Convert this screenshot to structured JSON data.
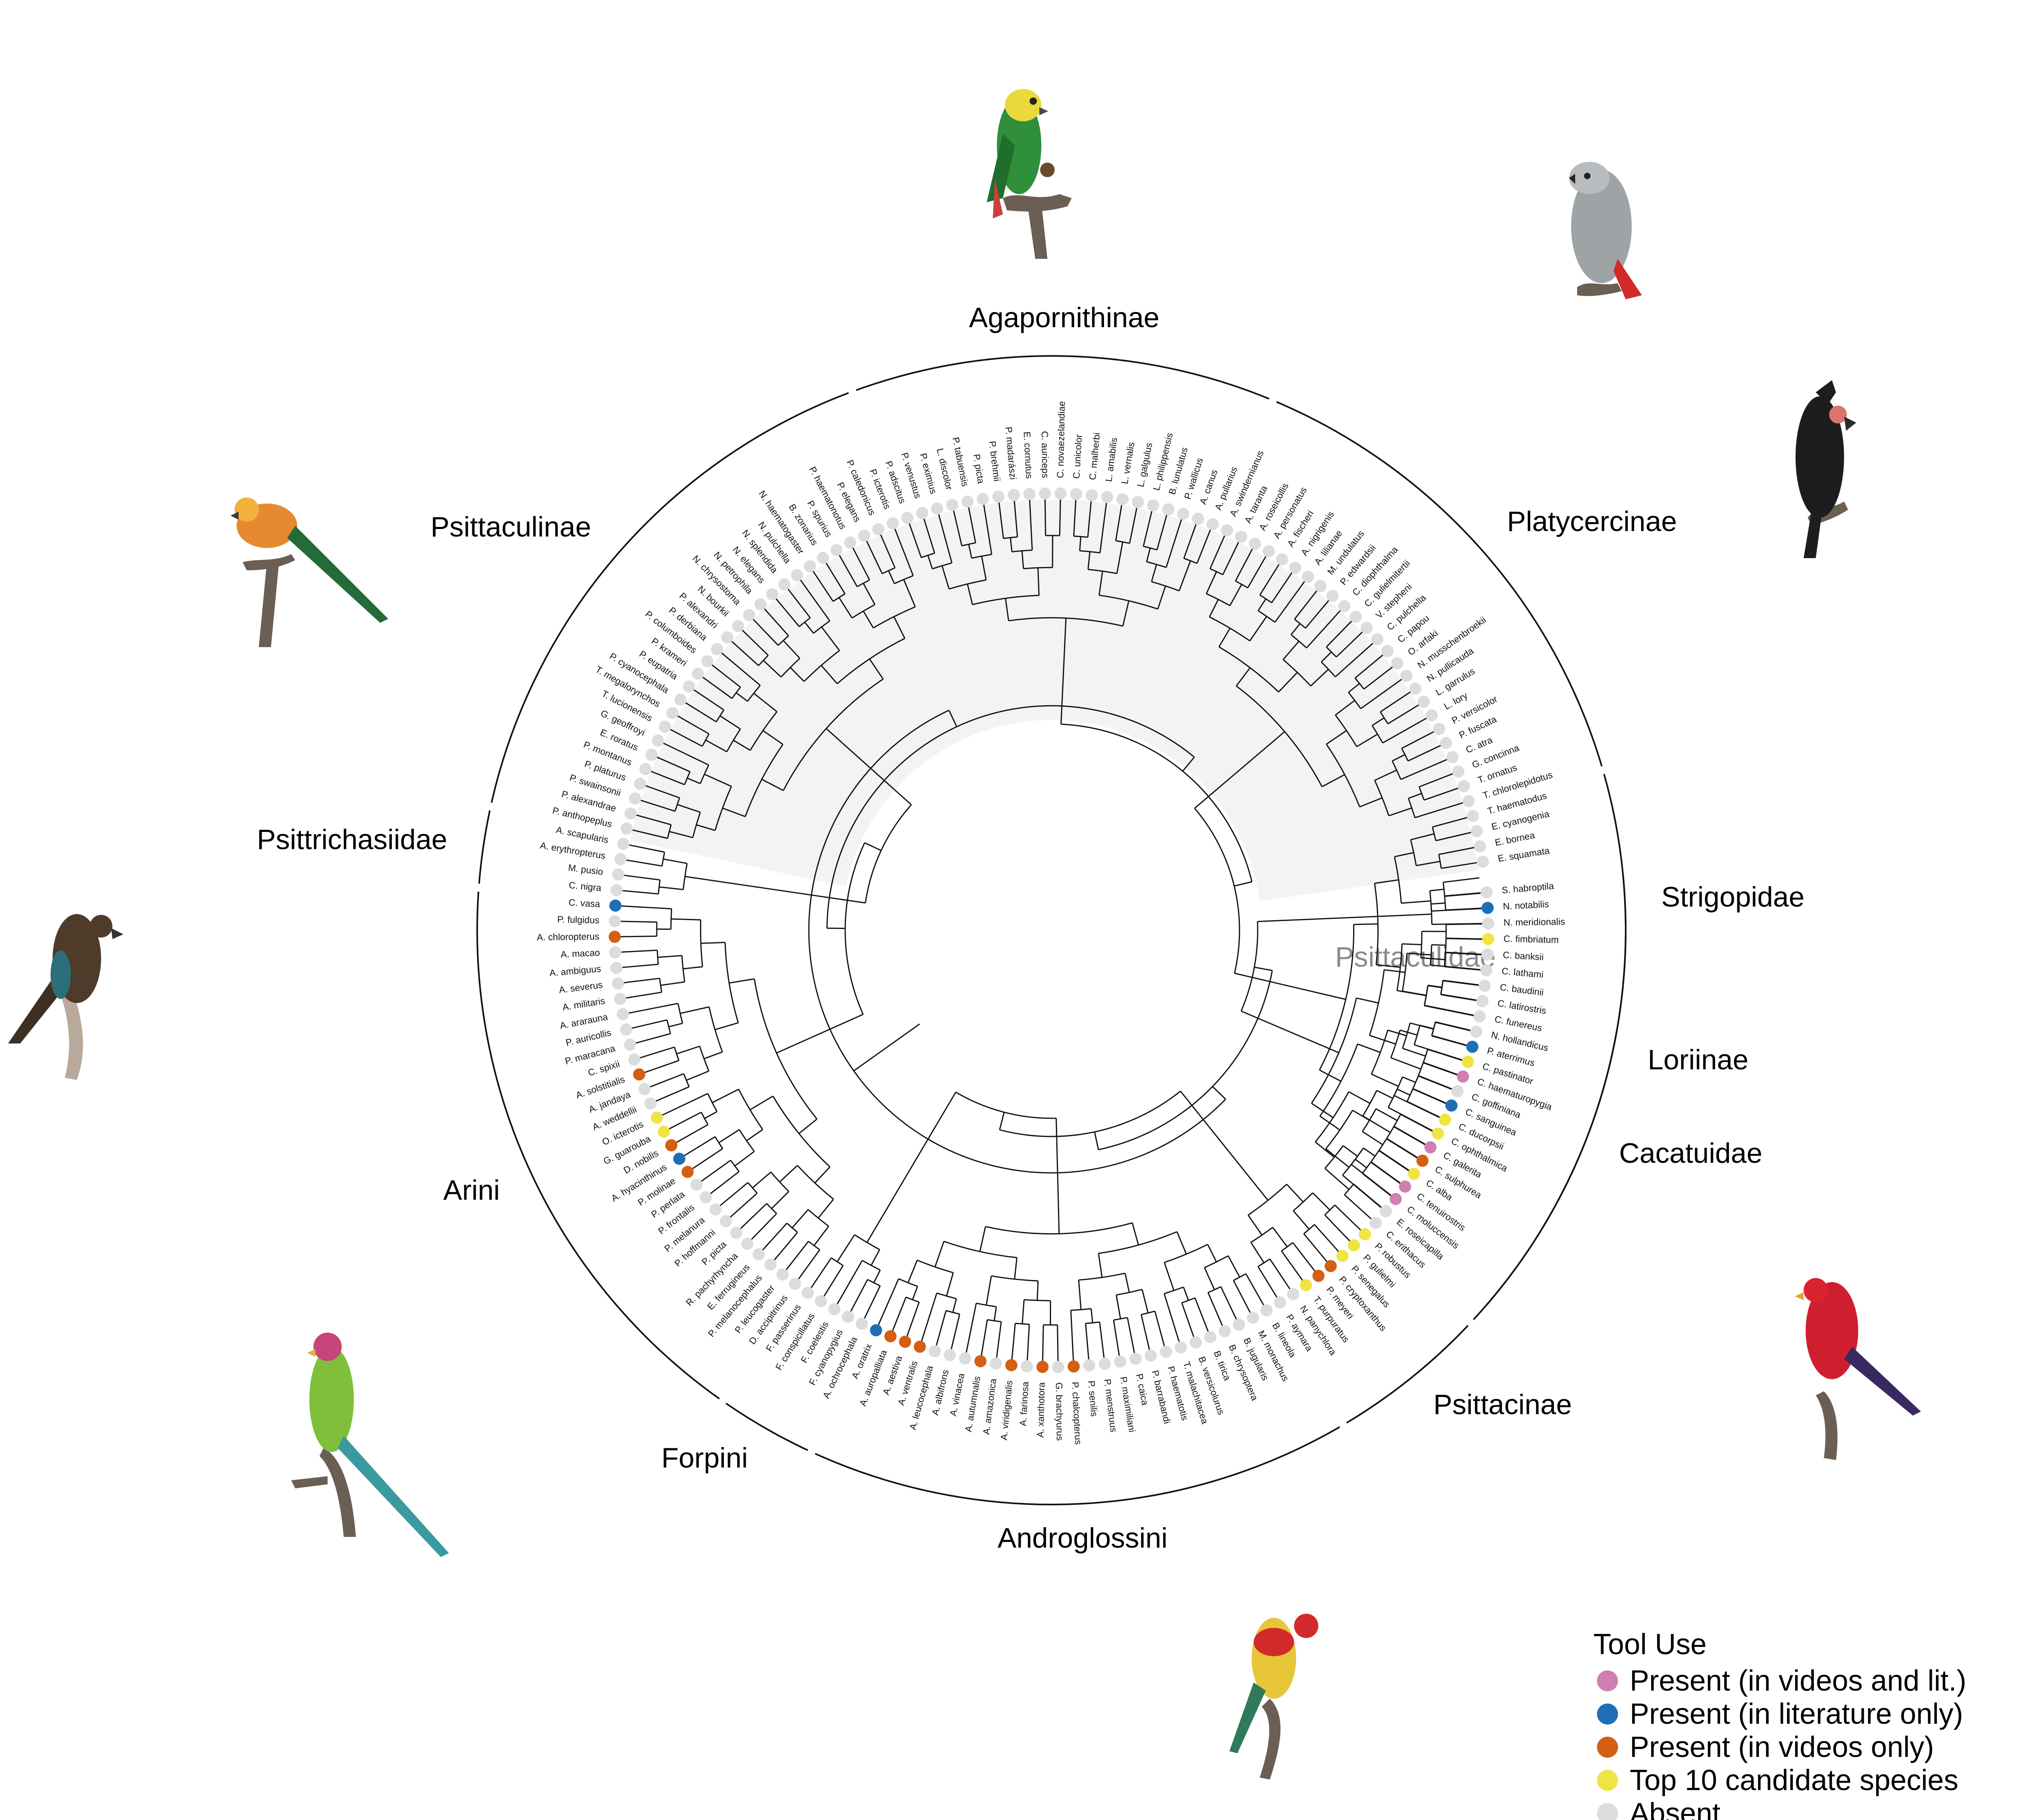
{
  "colors": {
    "present_videos_and_lit": "#d07fb3",
    "present_literature_only": "#1f6fb5",
    "present_videos_only": "#d45f12",
    "top10_candidate": "#f0e442",
    "absent": "#dcdcdc",
    "psittaculidae_shade": "#f3f3f3"
  },
  "legend": {
    "title": "Tool Use",
    "items": [
      {
        "label": "Present (in videos and lit.)",
        "status": "video_lit"
      },
      {
        "label": "Present (in literature only)",
        "status": "lit"
      },
      {
        "label": "Present (in videos only)",
        "status": "video"
      },
      {
        "label": "Top 10 candidate species",
        "status": "top10"
      },
      {
        "label": "Absent",
        "status": "absent"
      }
    ]
  },
  "shaded_clade_label": "Psittaculidae",
  "clades": [
    {
      "name": "Strigopidae",
      "from": 0,
      "to": 2
    },
    {
      "name": "Cacatuidae",
      "from": 3,
      "to": 23
    },
    {
      "name": "Psittacinae",
      "from": 24,
      "to": 31
    },
    {
      "name": "Androglossini",
      "from": 32,
      "to": 58
    },
    {
      "name": "Forpini",
      "from": 59,
      "to": 63
    },
    {
      "name": "Arini",
      "from": 64,
      "to": 92
    },
    {
      "name": "Psittrichasiidae",
      "from": 93,
      "to": 96
    },
    {
      "name": "Psittaculinae",
      "from": 97,
      "to": 124
    },
    {
      "name": "Agapornithinae",
      "from": 125,
      "to": 145
    },
    {
      "name": "Platycercinae",
      "from": 146,
      "to": 170
    },
    {
      "name": "Loriinae",
      "from": 171,
      "to": 198
    }
  ],
  "species": [
    {
      "name": "S. habroptila",
      "status": "absent"
    },
    {
      "name": "N. notabilis",
      "status": "lit"
    },
    {
      "name": "N. meridionalis",
      "status": "absent"
    },
    {
      "name": "C. fimbriatum",
      "status": "top10"
    },
    {
      "name": "C. banksii",
      "status": "absent"
    },
    {
      "name": "C. lathami",
      "status": "absent"
    },
    {
      "name": "C. baudinii",
      "status": "absent"
    },
    {
      "name": "C. latirostris",
      "status": "absent"
    },
    {
      "name": "C. funereus",
      "status": "absent"
    },
    {
      "name": "N. hollandicus",
      "status": "absent"
    },
    {
      "name": "P. aterrimus",
      "status": "lit"
    },
    {
      "name": "C. pastinator",
      "status": "top10"
    },
    {
      "name": "C. haematuropygia",
      "status": "video_lit"
    },
    {
      "name": "C. goffiniana",
      "status": "absent"
    },
    {
      "name": "C. sanguinea",
      "status": "lit"
    },
    {
      "name": "C. ducorpsii",
      "status": "top10"
    },
    {
      "name": "C. ophthalmica",
      "status": "top10"
    },
    {
      "name": "C. galerita",
      "status": "video_lit"
    },
    {
      "name": "C. sulphurea",
      "status": "video"
    },
    {
      "name": "C. alba",
      "status": "top10"
    },
    {
      "name": "C. tenuirostris",
      "status": "video_lit"
    },
    {
      "name": "C. moluccensis",
      "status": "video_lit"
    },
    {
      "name": "E. roseicapilla",
      "status": "absent"
    },
    {
      "name": "C. erithacus",
      "status": "absent"
    },
    {
      "name": "P. robustus",
      "status": "top10"
    },
    {
      "name": "P. gulielmi",
      "status": "top10"
    },
    {
      "name": "P. senegalus",
      "status": "top10"
    },
    {
      "name": "P. cryptoxanthus",
      "status": "video"
    },
    {
      "name": "P. meyeri",
      "status": "video"
    },
    {
      "name": "T. purpuratus",
      "status": "top10"
    },
    {
      "name": "N. panychlora",
      "status": "absent"
    },
    {
      "name": "P. aymara",
      "status": "absent"
    },
    {
      "name": "B. lineola",
      "status": "absent"
    },
    {
      "name": "M. monachus",
      "status": "absent"
    },
    {
      "name": "B. jugularis",
      "status": "absent"
    },
    {
      "name": "B. chrysoptera",
      "status": "absent"
    },
    {
      "name": "B. tirica",
      "status": "absent"
    },
    {
      "name": "B. versicolurus",
      "status": "absent"
    },
    {
      "name": "T. malachitacea",
      "status": "absent"
    },
    {
      "name": "P. haematotis",
      "status": "absent"
    },
    {
      "name": "P. barrabandi",
      "status": "absent"
    },
    {
      "name": "P. caica",
      "status": "absent"
    },
    {
      "name": "P. maximiliani",
      "status": "absent"
    },
    {
      "name": "P. menstruus",
      "status": "absent"
    },
    {
      "name": "P. senilis",
      "status": "absent"
    },
    {
      "name": "P. chalcopterus",
      "status": "video"
    },
    {
      "name": "G. brachyurus",
      "status": "absent"
    },
    {
      "name": "A. xanthotora",
      "status": "video"
    },
    {
      "name": "A. farinosa",
      "status": "absent"
    },
    {
      "name": "A. viridigenalis",
      "status": "video"
    },
    {
      "name": "A. amazonica",
      "status": "absent"
    },
    {
      "name": "A. autumnalis",
      "status": "video"
    },
    {
      "name": "A. vinacea",
      "status": "absent"
    },
    {
      "name": "A. albifrons",
      "status": "absent"
    },
    {
      "name": "A. leucocephala",
      "status": "absent"
    },
    {
      "name": "A. ventralis",
      "status": "video"
    },
    {
      "name": "A. aestiva",
      "status": "video"
    },
    {
      "name": "A. auropalliata",
      "status": "video"
    },
    {
      "name": "A. oratrix",
      "status": "lit"
    },
    {
      "name": "A. ochrocephala",
      "status": "absent"
    },
    {
      "name": "F. cyanopygius",
      "status": "absent"
    },
    {
      "name": "F. coelestis",
      "status": "absent"
    },
    {
      "name": "F. conspicillatus",
      "status": "absent"
    },
    {
      "name": "F. passerinus",
      "status": "absent"
    },
    {
      "name": "D. accipitrinus",
      "status": "absent"
    },
    {
      "name": "P. leucogaster",
      "status": "absent"
    },
    {
      "name": "P. melanocephalus",
      "status": "absent"
    },
    {
      "name": "E. ferrugineus",
      "status": "absent"
    },
    {
      "name": "R. pachyrhyncha",
      "status": "absent"
    },
    {
      "name": "P. picta",
      "status": "absent"
    },
    {
      "name": "P. hoffmanni",
      "status": "absent"
    },
    {
      "name": "P. melanura",
      "status": "absent"
    },
    {
      "name": "P. frontalis",
      "status": "absent"
    },
    {
      "name": "P. perlata",
      "status": "absent"
    },
    {
      "name": "P. molinae",
      "status": "video"
    },
    {
      "name": "A. hyacinthinus",
      "status": "lit"
    },
    {
      "name": "D. nobilis",
      "status": "video"
    },
    {
      "name": "G. guarouba",
      "status": "top10"
    },
    {
      "name": "O. icterotis",
      "status": "top10"
    },
    {
      "name": "A. weddellii",
      "status": "absent"
    },
    {
      "name": "A. jandaya",
      "status": "absent"
    },
    {
      "name": "A. solstitialis",
      "status": "video"
    },
    {
      "name": "C. spixii",
      "status": "absent"
    },
    {
      "name": "P. maracana",
      "status": "absent"
    },
    {
      "name": "P. auricollis",
      "status": "absent"
    },
    {
      "name": "A. ararauna",
      "status": "absent"
    },
    {
      "name": "A. militaris",
      "status": "absent"
    },
    {
      "name": "A. severus",
      "status": "absent"
    },
    {
      "name": "A. ambiguus",
      "status": "absent"
    },
    {
      "name": "A. macao",
      "status": "absent"
    },
    {
      "name": "A. chloropterus",
      "status": "video"
    },
    {
      "name": "P. fulgidus",
      "status": "absent"
    },
    {
      "name": "C. vasa",
      "status": "lit"
    },
    {
      "name": "C. nigra",
      "status": "absent"
    },
    {
      "name": "M. pusio",
      "status": "absent"
    },
    {
      "name": "A. erythropterus",
      "status": "absent"
    },
    {
      "name": "A. scapularis",
      "status": "absent"
    },
    {
      "name": "P. anthopeplus",
      "status": "absent"
    },
    {
      "name": "P. alexandrae",
      "status": "absent"
    },
    {
      "name": "P. swainsonii",
      "status": "absent"
    },
    {
      "name": "P. platurus",
      "status": "absent"
    },
    {
      "name": "P. montanus",
      "status": "absent"
    },
    {
      "name": "E. roratus",
      "status": "absent"
    },
    {
      "name": "G. geoffroyi",
      "status": "absent"
    },
    {
      "name": "T. lucionensis",
      "status": "absent"
    },
    {
      "name": "T. megalorynchos",
      "status": "absent"
    },
    {
      "name": "P. cyanocephala",
      "status": "absent"
    },
    {
      "name": "P. eupatria",
      "status": "absent"
    },
    {
      "name": "P. krameri",
      "status": "absent"
    },
    {
      "name": "P. columboides",
      "status": "absent"
    },
    {
      "name": "P. derbiana",
      "status": "absent"
    },
    {
      "name": "P. alexandri",
      "status": "absent"
    },
    {
      "name": "N. bourkii",
      "status": "absent"
    },
    {
      "name": "N. chrysostoma",
      "status": "absent"
    },
    {
      "name": "N. petrophila",
      "status": "absent"
    },
    {
      "name": "N. elegans",
      "status": "absent"
    },
    {
      "name": "N. splendida",
      "status": "absent"
    },
    {
      "name": "N. pulchella",
      "status": "absent"
    },
    {
      "name": "N. haematogaster",
      "status": "absent"
    },
    {
      "name": "B. zonarius",
      "status": "absent"
    },
    {
      "name": "P. spurius",
      "status": "absent"
    },
    {
      "name": "P. haematonotus",
      "status": "absent"
    },
    {
      "name": "P. elegans",
      "status": "absent"
    },
    {
      "name": "P. caledonicus",
      "status": "absent"
    },
    {
      "name": "P. icterotis",
      "status": "absent"
    },
    {
      "name": "P. adscitus",
      "status": "absent"
    },
    {
      "name": "P. venustus",
      "status": "absent"
    },
    {
      "name": "P. eximius",
      "status": "absent"
    },
    {
      "name": "L. discolor",
      "status": "absent"
    },
    {
      "name": "P. tabuensis",
      "status": "absent"
    },
    {
      "name": "P. picta",
      "status": "absent"
    },
    {
      "name": "P. brehmii",
      "status": "absent"
    },
    {
      "name": "P. madarászi",
      "status": "absent"
    },
    {
      "name": "E. cornutus",
      "status": "absent"
    },
    {
      "name": "C. auriceps",
      "status": "absent"
    },
    {
      "name": "C. novaezelandiae",
      "status": "absent"
    },
    {
      "name": "C. unicolor",
      "status": "absent"
    },
    {
      "name": "C. malherbi",
      "status": "absent"
    },
    {
      "name": "L. amabilis",
      "status": "absent"
    },
    {
      "name": "L. vernalis",
      "status": "absent"
    },
    {
      "name": "L. galgulus",
      "status": "absent"
    },
    {
      "name": "L. philippensis",
      "status": "absent"
    },
    {
      "name": "B. lunulatus",
      "status": "absent"
    },
    {
      "name": "P. wallicus",
      "status": "absent"
    },
    {
      "name": "A. canus",
      "status": "absent"
    },
    {
      "name": "A. pullarius",
      "status": "absent"
    },
    {
      "name": "A. swindernianus",
      "status": "absent"
    },
    {
      "name": "A. taranta",
      "status": "absent"
    },
    {
      "name": "A. roseicollis",
      "status": "absent"
    },
    {
      "name": "A. personatus",
      "status": "absent"
    },
    {
      "name": "A. fischeri",
      "status": "absent"
    },
    {
      "name": "A. nigrigenis",
      "status": "absent"
    },
    {
      "name": "A. lilianae",
      "status": "absent"
    },
    {
      "name": "M. undulatus",
      "status": "absent"
    },
    {
      "name": "P. edwardsii",
      "status": "absent"
    },
    {
      "name": "C. diophthalma",
      "status": "absent"
    },
    {
      "name": "C. gulielmitertii",
      "status": "absent"
    },
    {
      "name": "V. stepheni",
      "status": "absent"
    },
    {
      "name": "C. pulchella",
      "status": "absent"
    },
    {
      "name": "C. papou",
      "status": "absent"
    },
    {
      "name": "O. arfaki",
      "status": "absent"
    },
    {
      "name": "N. musschenbroekii",
      "status": "absent"
    },
    {
      "name": "N. pullicauda",
      "status": "absent"
    },
    {
      "name": "L. garrulus",
      "status": "absent"
    },
    {
      "name": "L. lory",
      "status": "absent"
    },
    {
      "name": "P. versicolor",
      "status": "absent"
    },
    {
      "name": "P. fuscata",
      "status": "absent"
    },
    {
      "name": "C. atra",
      "status": "absent"
    },
    {
      "name": "G. concinna",
      "status": "absent"
    },
    {
      "name": "T. ornatus",
      "status": "absent"
    },
    {
      "name": "T. chlorolepidotus",
      "status": "absent"
    },
    {
      "name": "T. haematodus",
      "status": "absent"
    },
    {
      "name": "E. cyanogenia",
      "status": "absent"
    },
    {
      "name": "E. bornea",
      "status": "absent"
    },
    {
      "name": "E. squamata",
      "status": "absent"
    }
  ]
}
